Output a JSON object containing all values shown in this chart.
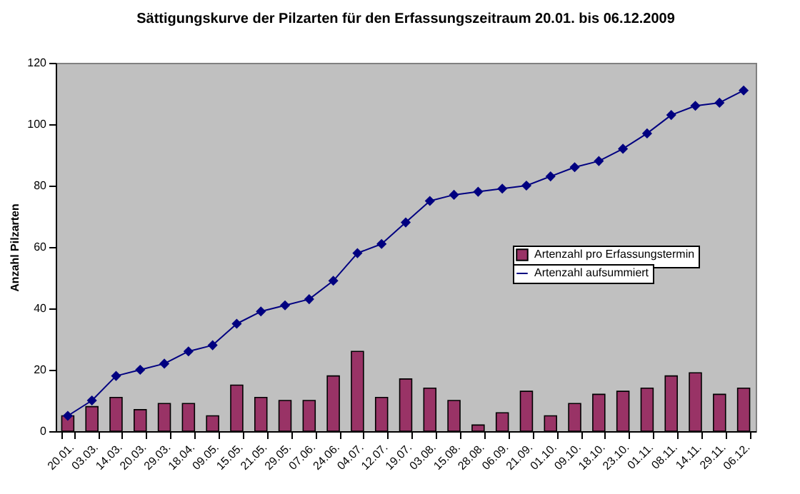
{
  "chart_data": {
    "type": "bar",
    "title": "Sättigungskurve der Pilzarten für den Erfassungszeitraum 20.01. bis 06.12.2009",
    "ylabel": "Anzahl Pilzarten",
    "categories": [
      "20.01.",
      "03.03.",
      "14.03.",
      "20.03.",
      "29.03.",
      "18.04.",
      "09.05.",
      "15.05.",
      "21.05.",
      "29.05.",
      "07.06.",
      "24.06.",
      "04.07.",
      "12.07.",
      "19.07.",
      "03.08.",
      "15.08.",
      "28.08.",
      "06.09.",
      "21.09.",
      "01.10.",
      "09.10.",
      "18.10.",
      "23.10.",
      "01.11.",
      "08.11.",
      "14.11.",
      "29.11.",
      "06.12."
    ],
    "series": [
      {
        "name": "Artenzahl pro Erfassungstermin",
        "color": "#993366",
        "values": [
          5,
          8,
          11,
          7,
          9,
          9,
          5,
          15,
          11,
          10,
          10,
          18,
          26,
          11,
          17,
          14,
          10,
          2,
          6,
          13,
          5,
          9,
          12,
          13,
          14,
          18,
          19,
          12,
          14
        ]
      },
      {
        "name": "Artenzahl aufsummiert",
        "type": "line",
        "color": "#000080",
        "marker": "diamond",
        "values": [
          5,
          10,
          18,
          20,
          22,
          26,
          28,
          35,
          39,
          41,
          43,
          49,
          58,
          61,
          68,
          75,
          77,
          78,
          79,
          80,
          83,
          86,
          88,
          92,
          97,
          103,
          106,
          107,
          111
        ]
      }
    ],
    "ylim": [
      0,
      120
    ],
    "yticks": [
      0,
      20,
      40,
      60,
      80,
      100,
      120
    ],
    "grid": false,
    "legend": "right"
  }
}
